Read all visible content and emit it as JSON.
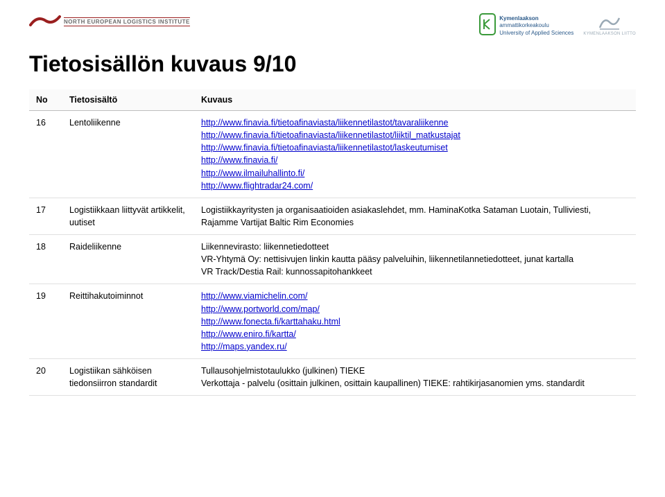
{
  "header": {
    "left_logo_text": "NORTH EUROPEAN LOGISTICS INSTITUTE",
    "center_logo_line1": "Kymenlaakson",
    "center_logo_line2": "ammattikorkeakoulu",
    "center_logo_line3": "University of Applied Sciences",
    "right_logo_text": "KYMENLAAKSON LIITTO"
  },
  "title": "Tietosisällön kuvaus 9/10",
  "columns": {
    "no": "No",
    "topic": "Tietosisältö",
    "desc": "Kuvaus"
  },
  "rows": [
    {
      "no": "16",
      "topic": "Lentoliikenne",
      "links": [
        "http://www.finavia.fi/tietoafinaviasta/liikennetilastot/tavaraliikenne",
        "http://www.finavia.fi/tietoafinaviasta/liikennetilastot/liiktil_matkustajat",
        "http://www.finavia.fi/tietoafinaviasta/liikennetilastot/laskeutumiset",
        "http://www.finavia.fi/",
        "http://www.ilmailuhallinto.fi/",
        "http://www.flightradar24.com/"
      ]
    },
    {
      "no": "17",
      "topic": "Logistiikkaan liittyvät artikkelit, uutiset",
      "text": "Logistiikkayritysten ja organisaatioiden asiakaslehdet, mm. HaminaKotka Sataman Luotain, Tulliviesti, Rajamme Vartijat Baltic Rim Economies"
    },
    {
      "no": "18",
      "topic": "Raideliikenne",
      "text": "Liikennevirasto: liikennetiedotteet\nVR-Yhtymä Oy: nettisivujen linkin kautta pääsy palveluihin, liikennetilannetiedotteet, junat kartalla\nVR Track/Destia Rail: kunnossapitohankkeet"
    },
    {
      "no": "19",
      "topic": "Reittihakutoiminnot",
      "links": [
        "http://www.viamichelin.com/",
        "http://www.portworld.com/map/",
        "http://www.fonecta.fi/karttahaku.html",
        "http://www.eniro.fi/kartta/",
        "http://maps.yandex.ru/"
      ]
    },
    {
      "no": "20",
      "topic": "Logistiikan sähköisen tiedonsiirron standardit",
      "text": "Tullausohjelmistotaulukko (julkinen) TIEKE\nVerkottaja - palvelu (osittain julkinen, osittain kaupallinen) TIEKE: rahtikirjasanomien yms. standardit"
    }
  ],
  "style": {
    "link_color": "#0000cc",
    "border_color": "#e0e0e0",
    "header_border": "#bdbdbd",
    "title_fontsize": 32,
    "body_fontsize": 12.5,
    "brand_red": "#9a1f1f",
    "brand_blue": "#2b5a8a",
    "brand_green": "#3a9a3a",
    "brand_grey": "#9aa9b5"
  }
}
